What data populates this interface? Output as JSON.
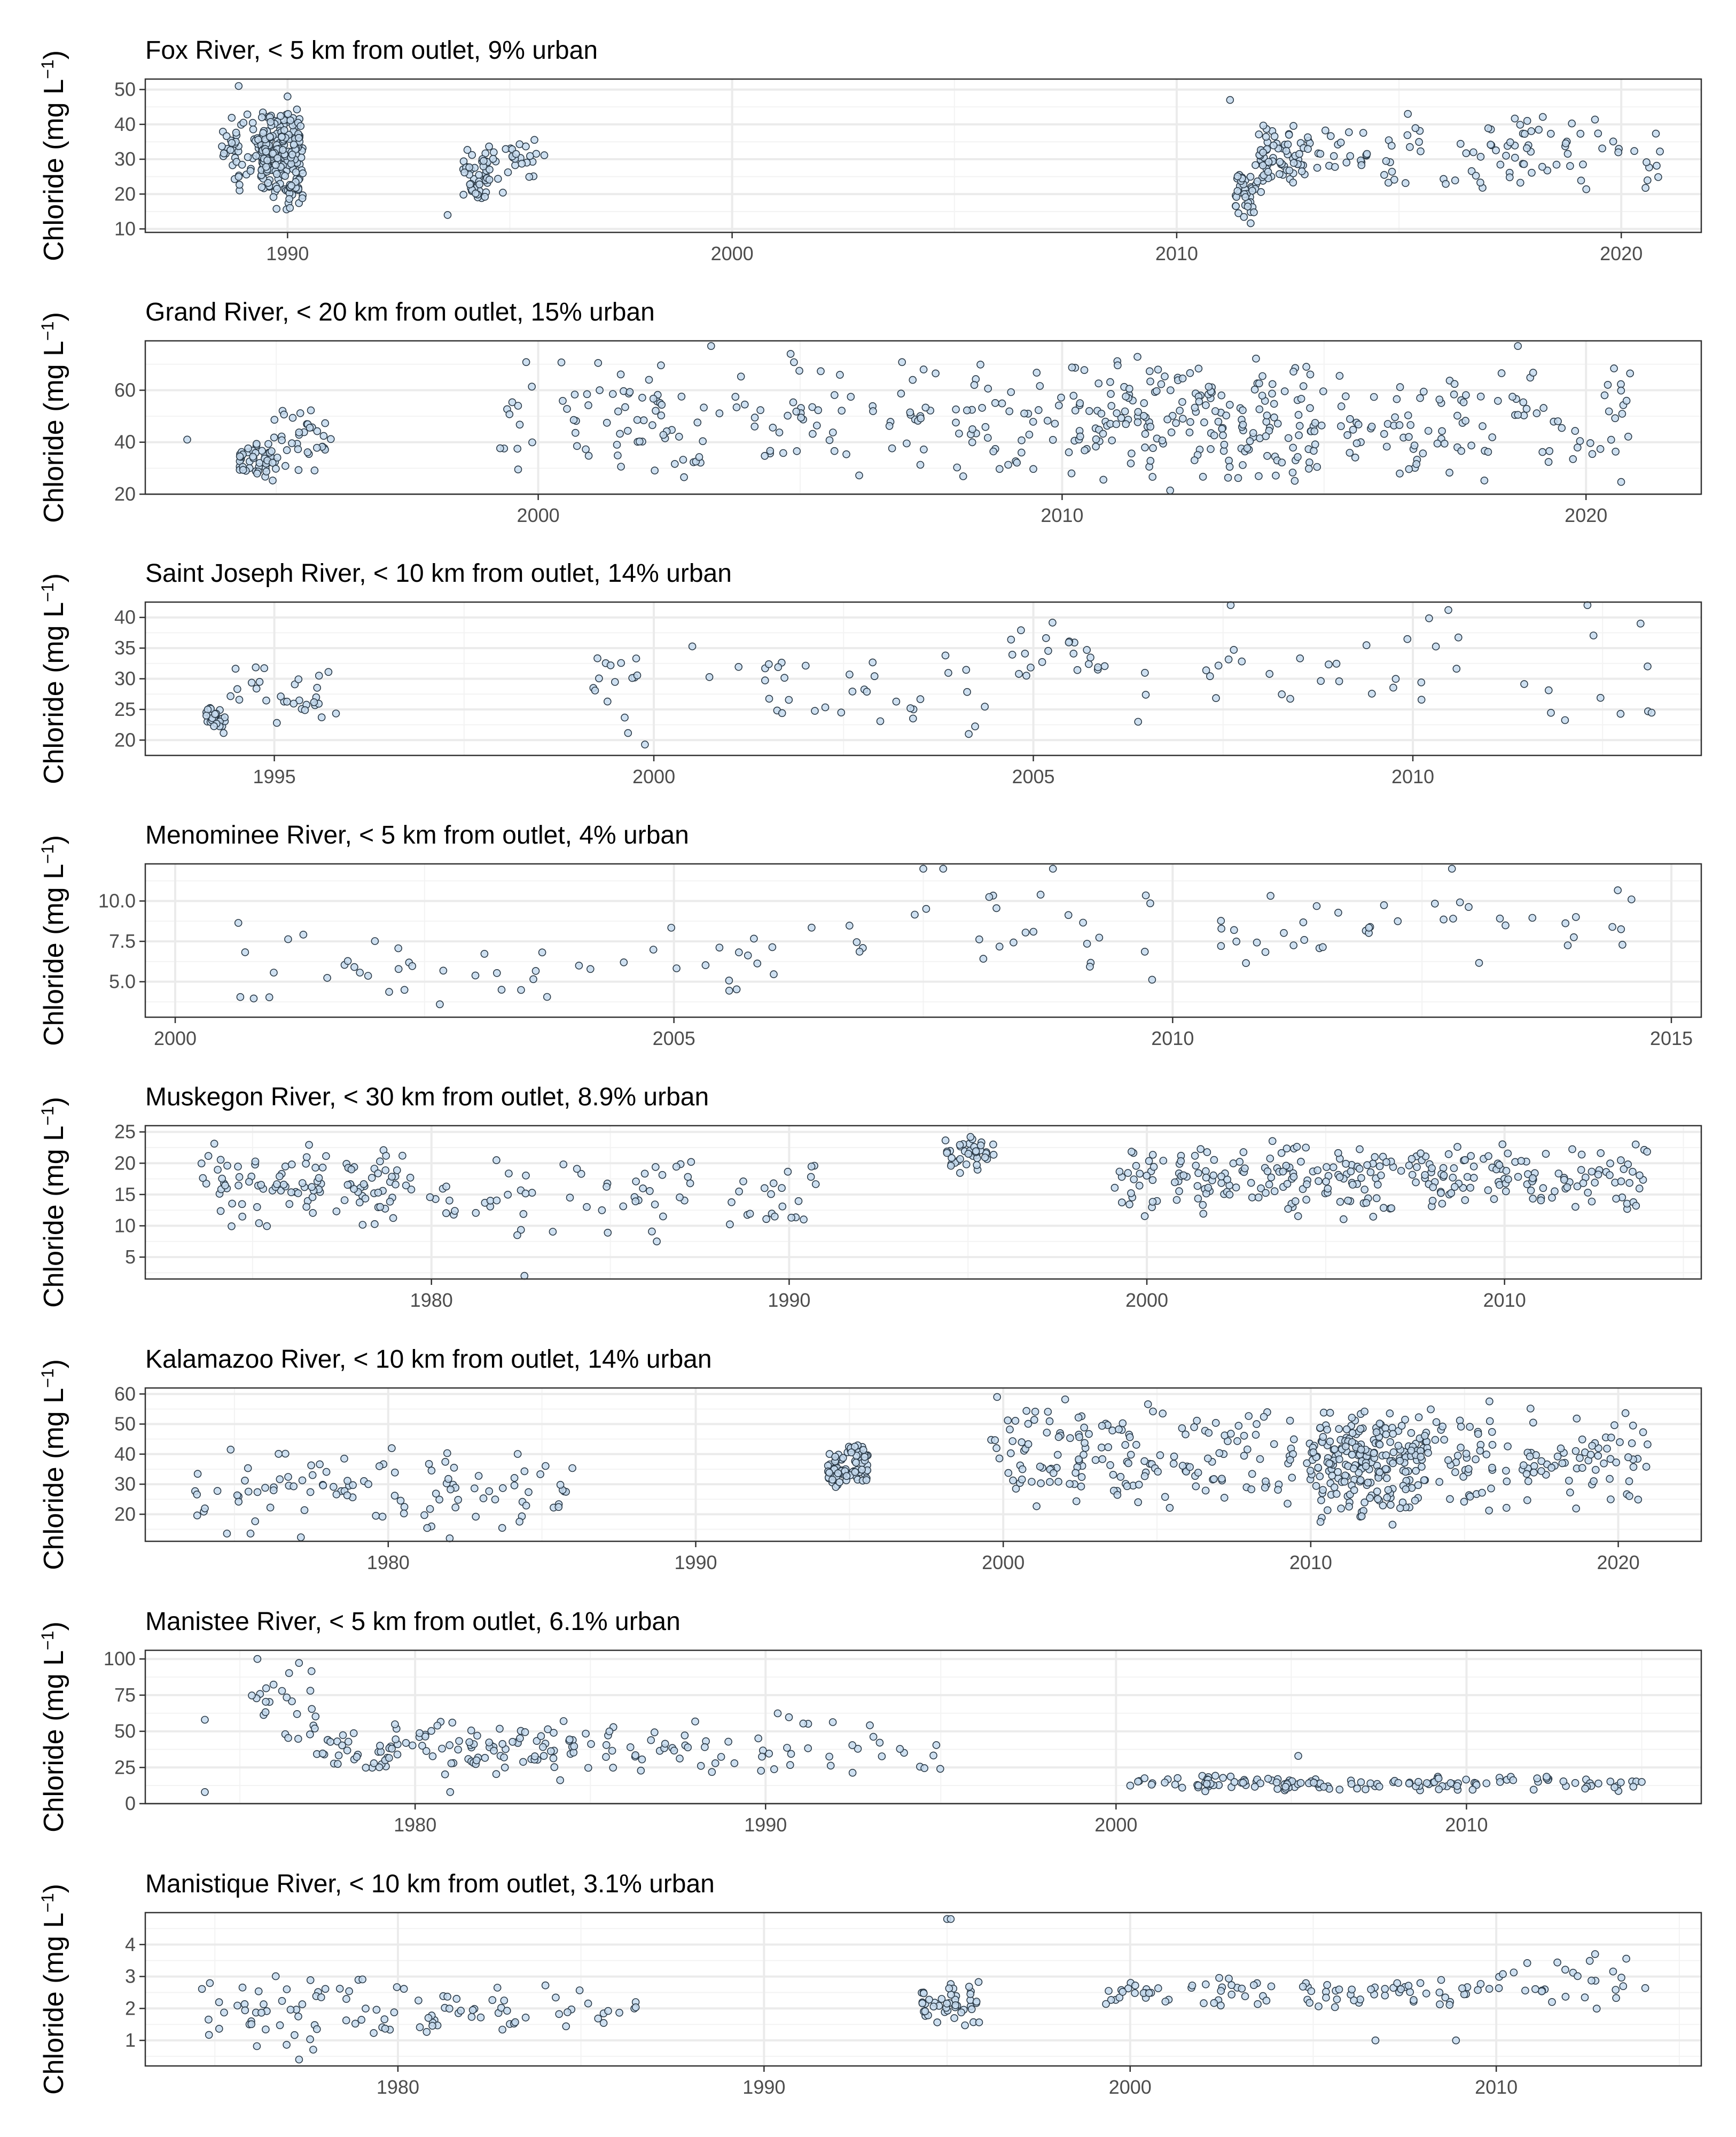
{
  "y_label": {
    "main": "Chloride (mg L",
    "sup": "−1",
    "close": ")"
  },
  "colors": {
    "point_fill": "#c6dbef",
    "point_stroke": "#2b3a47",
    "panel_border": "#333333",
    "grid": "#ebebeb"
  },
  "chart_data": [
    {
      "type": "scatter",
      "title": "Fox River, < 5 km from outlet, 9% urban",
      "xlim": [
        1986.8,
        2021.8
      ],
      "ylim": [
        9,
        53
      ],
      "xticks": [
        1990,
        2000,
        2010,
        2020
      ],
      "yticks": [
        10,
        20,
        30,
        40,
        50
      ],
      "ytick_labels": [
        "10",
        "20",
        "30",
        "40",
        "50"
      ],
      "grid": true,
      "clusters": [
        {
          "x": [
            1988.5,
            1989.6
          ],
          "y": [
            20,
            46
          ],
          "n": 55
        },
        {
          "x": [
            1989.4,
            1990.35
          ],
          "y": [
            15,
            48
          ],
          "n": 210
        },
        {
          "x": [
            1993.9,
            1994.5
          ],
          "y": [
            17,
            34
          ],
          "n": 45
        },
        {
          "x": [
            1994.5,
            1995.8
          ],
          "y": [
            16,
            39
          ],
          "n": 30
        },
        {
          "x": [
            2011.3,
            2011.8
          ],
          "y": [
            11,
            30
          ],
          "n": 40
        },
        {
          "x": [
            2011.8,
            2013.0
          ],
          "y": [
            20,
            42
          ],
          "n": 75
        },
        {
          "x": [
            2013.0,
            2015.0
          ],
          "y": [
            22,
            40
          ],
          "n": 28
        },
        {
          "x": [
            2015.0,
            2020.9
          ],
          "y": [
            18,
            44
          ],
          "n": 75
        }
      ],
      "points": [
        [
          1988.9,
          51
        ],
        [
          1990.0,
          48
        ],
        [
          1993.6,
          14
        ],
        [
          2011.2,
          47
        ],
        [
          2015.2,
          43
        ]
      ]
    },
    {
      "type": "scatter",
      "title": "Grand River, < 20 km from outlet, 15% urban",
      "xlim": [
        1992.5,
        2022.2
      ],
      "ylim": [
        20,
        79
      ],
      "xticks": [
        2000,
        2010,
        2020
      ],
      "yticks": [
        20,
        40,
        60
      ],
      "ytick_labels": [
        "20",
        "40",
        "60"
      ],
      "grid": true,
      "clusters": [
        {
          "x": [
            1994.3,
            1994.9
          ],
          "y": [
            25,
            42
          ],
          "n": 45
        },
        {
          "x": [
            1994.9,
            1996.1
          ],
          "y": [
            22,
            58
          ],
          "n": 40
        },
        {
          "x": [
            1999.2,
            1999.9
          ],
          "y": [
            28,
            75
          ],
          "n": 12
        },
        {
          "x": [
            2000.4,
            2010.3
          ],
          "y": [
            23,
            77
          ],
          "n": 170
        },
        {
          "x": [
            2010.3,
            2015.0
          ],
          "y": [
            21,
            74
          ],
          "n": 190
        },
        {
          "x": [
            2015.0,
            2020.9
          ],
          "y": [
            21,
            77
          ],
          "n": 105
        }
      ],
      "points": [
        [
          1993.3,
          41
        ],
        [
          2003.3,
          77
        ],
        [
          2018.7,
          77
        ]
      ]
    },
    {
      "type": "scatter",
      "title": "Saint Joseph River, < 10 km from outlet, 14% urban",
      "xlim": [
        1993.3,
        2013.8
      ],
      "ylim": [
        17.5,
        42.5
      ],
      "xticks": [
        1995,
        2000,
        2005,
        2010
      ],
      "yticks": [
        20,
        25,
        30,
        35,
        40
      ],
      "ytick_labels": [
        "20",
        "25",
        "30",
        "35",
        "40"
      ],
      "grid": true,
      "clusters": [
        {
          "x": [
            1994.1,
            1994.35
          ],
          "y": [
            21,
            26
          ],
          "n": 25
        },
        {
          "x": [
            1994.4,
            1995.9
          ],
          "y": [
            21,
            33
          ],
          "n": 30
        },
        {
          "x": [
            1999.2,
            1999.9
          ],
          "y": [
            18,
            38
          ],
          "n": 16
        },
        {
          "x": [
            2000.5,
            2004.6
          ],
          "y": [
            20,
            37
          ],
          "n": 36
        },
        {
          "x": [
            2004.6,
            2006.1
          ],
          "y": [
            28,
            40
          ],
          "n": 22
        },
        {
          "x": [
            2006.1,
            2013.2
          ],
          "y": [
            20,
            42
          ],
          "n": 40
        }
      ],
      "points": [
        [
          2007.6,
          42
        ],
        [
          2012.3,
          42
        ],
        [
          2013.0,
          39
        ]
      ]
    },
    {
      "type": "scatter",
      "title": "Menominee River, < 5 km from outlet, 4% urban",
      "xlim": [
        1999.7,
        2015.3
      ],
      "ylim": [
        2.8,
        12.3
      ],
      "xticks": [
        2000,
        2005,
        2010,
        2015
      ],
      "yticks": [
        5.0,
        7.5,
        10.0
      ],
      "ytick_labels": [
        "5.0",
        "7.5",
        "10.0"
      ],
      "grid": true,
      "clusters": [
        {
          "x": [
            2000.6,
            2003.9
          ],
          "y": [
            3,
            9
          ],
          "n": 32
        },
        {
          "x": [
            2004.0,
            2007.3
          ],
          "y": [
            4,
            9
          ],
          "n": 22
        },
        {
          "x": [
            2007.3,
            2009.9
          ],
          "y": [
            4,
            12
          ],
          "n": 22
        },
        {
          "x": [
            2010.3,
            2012.2
          ],
          "y": [
            4.2,
            11
          ],
          "n": 22
        },
        {
          "x": [
            2012.2,
            2014.6
          ],
          "y": [
            5.5,
            12
          ],
          "n": 18
        }
      ],
      "points": [
        [
          2007.5,
          12
        ],
        [
          2007.7,
          12
        ],
        [
          2008.8,
          12
        ],
        [
          2012.8,
          12
        ],
        [
          2014.6,
          10.1
        ]
      ]
    },
    {
      "type": "scatter",
      "title": "Muskegon River, < 30 km from outlet, 8.9% urban",
      "xlim": [
        1972.0,
        2015.5
      ],
      "ylim": [
        1.5,
        26
      ],
      "xticks": [
        1980,
        1990,
        2000,
        2010
      ],
      "yticks": [
        5,
        10,
        15,
        20,
        25
      ],
      "ytick_labels": [
        "5",
        "10",
        "15",
        "20",
        "25"
      ],
      "grid": true,
      "clusters": [
        {
          "x": [
            1973.5,
            1979.5
          ],
          "y": [
            9,
            24
          ],
          "n": 110
        },
        {
          "x": [
            1979.5,
            1990.8
          ],
          "y": [
            8,
            22
          ],
          "n": 75
        },
        {
          "x": [
            1994.3,
            1995.8
          ],
          "y": [
            18,
            25
          ],
          "n": 40
        },
        {
          "x": [
            1999.1,
            2004.9
          ],
          "y": [
            11,
            24
          ],
          "n": 110
        },
        {
          "x": [
            2004.9,
            2014.0
          ],
          "y": [
            11,
            24
          ],
          "n": 170
        }
      ],
      "points": [
        [
          1982.6,
          2
        ],
        [
          1982.4,
          8.5
        ],
        [
          1986.3,
          7.5
        ]
      ]
    },
    {
      "type": "scatter",
      "title": "Kalamazoo River, < 10 km from outlet, 14% urban",
      "xlim": [
        1972.1,
        2022.7
      ],
      "ylim": [
        11,
        62
      ],
      "xticks": [
        1980,
        1990,
        2000,
        2010,
        2020
      ],
      "yticks": [
        20,
        30,
        40,
        50,
        60
      ],
      "ytick_labels": [
        "20",
        "30",
        "40",
        "50",
        "60"
      ],
      "grid": true,
      "clusters": [
        {
          "x": [
            1973.7,
            1986.0
          ],
          "y": [
            12,
            43
          ],
          "n": 105
        },
        {
          "x": [
            1994.3,
            1994.9
          ],
          "y": [
            28,
            42
          ],
          "n": 45
        },
        {
          "x": [
            1994.9,
            1995.6
          ],
          "y": [
            28,
            46
          ],
          "n": 40
        },
        {
          "x": [
            1999.5,
            2009.9
          ],
          "y": [
            21,
            59
          ],
          "n": 165
        },
        {
          "x": [
            2009.9,
            2013.8
          ],
          "y": [
            15,
            59
          ],
          "n": 230
        },
        {
          "x": [
            2013.8,
            2021.0
          ],
          "y": [
            19,
            58
          ],
          "n": 115
        }
      ],
      "points": [
        [
          1982.0,
          12
        ],
        [
          1999.8,
          59
        ]
      ]
    },
    {
      "type": "scatter",
      "title": "Manistee River, < 5 km from outlet, 6.1% urban",
      "xlim": [
        1972.3,
        2016.7
      ],
      "ylim": [
        0,
        106
      ],
      "xticks": [
        1980,
        1990,
        2000,
        2010
      ],
      "yticks": [
        0,
        25,
        50,
        75,
        100
      ],
      "ytick_labels": [
        "0",
        "25",
        "50",
        "75",
        "100"
      ],
      "grid": true,
      "clusters": [
        {
          "x": [
            1975.3,
            1977.2
          ],
          "y": [
            35,
            98
          ],
          "n": 25
        },
        {
          "x": [
            1977.0,
            1984.0
          ],
          "y": [
            18,
            60
          ],
          "n": 105
        },
        {
          "x": [
            1984.0,
            1995.0
          ],
          "y": [
            10,
            63
          ],
          "n": 75
        },
        {
          "x": [
            2000.4,
            2015.0
          ],
          "y": [
            8,
            20
          ],
          "n": 140
        }
      ],
      "points": [
        [
          1974.0,
          58
        ],
        [
          1974.0,
          8
        ],
        [
          1975.5,
          100
        ],
        [
          1981.0,
          8
        ],
        [
          2005.2,
          33
        ],
        [
          2015.0,
          15
        ]
      ]
    },
    {
      "type": "scatter",
      "title": "Manistique River, < 10 km from outlet, 3.1% urban",
      "xlim": [
        1973.1,
        2015.6
      ],
      "ylim": [
        0.2,
        5.0
      ],
      "xticks": [
        1980,
        1990,
        2000,
        2010
      ],
      "yticks": [
        1,
        2,
        3,
        4
      ],
      "ytick_labels": [
        "1",
        "2",
        "3",
        "4"
      ],
      "grid": true,
      "clusters": [
        {
          "x": [
            1974.6,
            1979.8
          ],
          "y": [
            0.6,
            3.1
          ],
          "n": 55
        },
        {
          "x": [
            1979.8,
            1986.6
          ],
          "y": [
            1.2,
            2.8
          ],
          "n": 50
        },
        {
          "x": [
            1994.3,
            1995.9
          ],
          "y": [
            1.4,
            2.9
          ],
          "n": 45
        },
        {
          "x": [
            1999.3,
            2009.9
          ],
          "y": [
            2,
            3
          ],
          "n": 90
        },
        {
          "x": [
            2010.0,
            2014.1
          ],
          "y": [
            1.9,
            3.7
          ],
          "n": 28
        }
      ],
      "points": [
        [
          1977.3,
          0.4
        ],
        [
          1995.0,
          4.8
        ],
        [
          1995.1,
          4.8
        ],
        [
          2006.7,
          1.0
        ],
        [
          2008.9,
          1.0
        ],
        [
          2012.7,
          3.7
        ]
      ]
    }
  ]
}
